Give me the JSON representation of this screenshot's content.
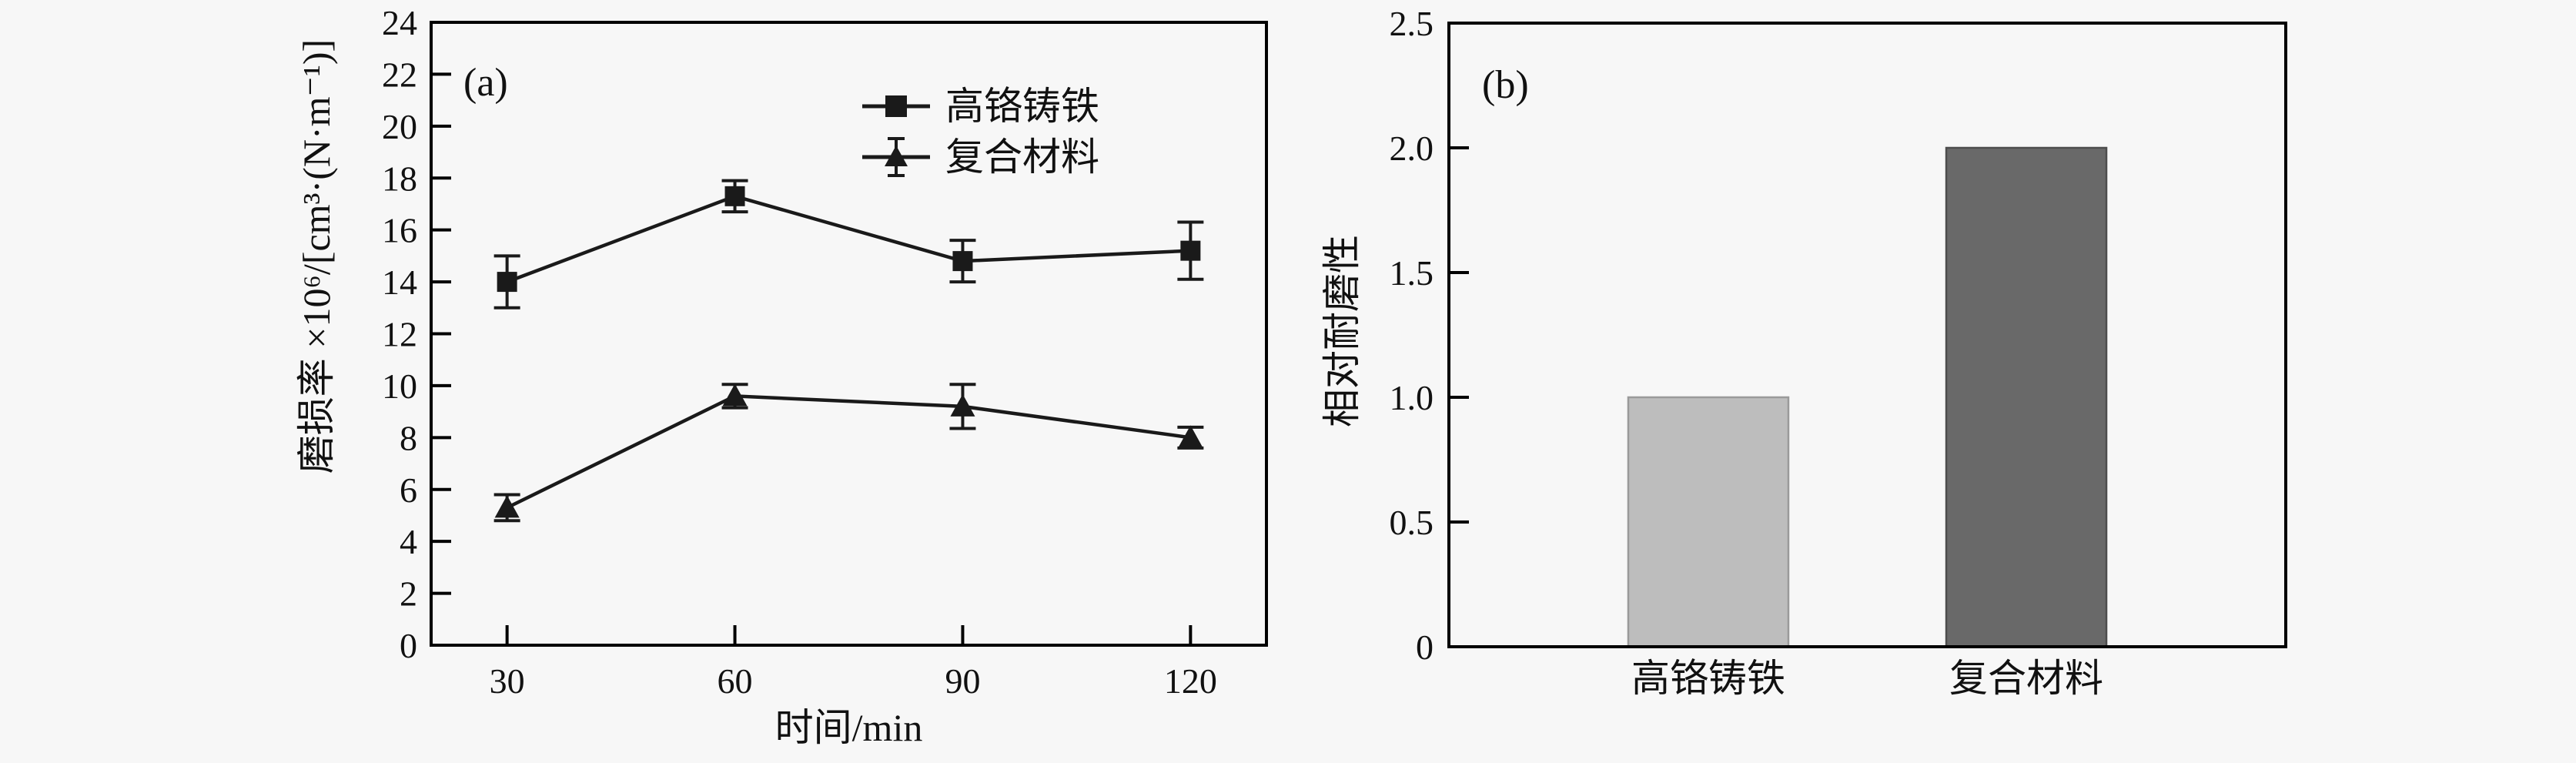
{
  "figure": {
    "background": "#f7f7f7",
    "axis_color": "#000000",
    "line_color": "#1a1a1a"
  },
  "chart_data": [
    {
      "id": "a",
      "type": "line",
      "panel_label": "(a)",
      "xlabel": "时间/min",
      "ylabel": "磨损率 ×10⁶/[cm³·(N·m⁻¹)]",
      "x": [
        30,
        60,
        90,
        120
      ],
      "xlim": [
        20,
        130
      ],
      "ylim": [
        0,
        24
      ],
      "yticks": [
        0,
        2,
        4,
        6,
        8,
        10,
        12,
        14,
        16,
        18,
        20,
        22,
        24
      ],
      "xticks": [
        30,
        60,
        90,
        120
      ],
      "grid": false,
      "legend_position": "inside-top-right",
      "series": [
        {
          "name": "高铬铸铁",
          "marker": "square",
          "values": [
            14.0,
            17.3,
            14.8,
            15.2
          ],
          "errors": [
            1.0,
            0.6,
            0.8,
            1.1
          ]
        },
        {
          "name": "复合材料",
          "marker": "triangle",
          "values": [
            5.3,
            9.6,
            9.2,
            8.0
          ],
          "errors": [
            0.5,
            0.45,
            0.85,
            0.4
          ]
        }
      ]
    },
    {
      "id": "b",
      "type": "bar",
      "panel_label": "(b)",
      "xlabel": "",
      "ylabel": "相对耐磨性",
      "categories": [
        "高铬铸铁",
        "复合材料"
      ],
      "values": [
        1.0,
        2.0
      ],
      "bar_colors": [
        "#bdbdbd",
        "#696969"
      ],
      "bar_edge_colors": [
        "#9a9a9a",
        "#4d4d4d"
      ],
      "ylim": [
        0,
        2.5
      ],
      "ytick_labels": [
        "0",
        "0.5",
        "1.0",
        "1.5",
        "2.0",
        "2.5"
      ],
      "yticks": [
        0,
        0.5,
        1.0,
        1.5,
        2.0,
        2.5
      ],
      "grid": false
    }
  ]
}
